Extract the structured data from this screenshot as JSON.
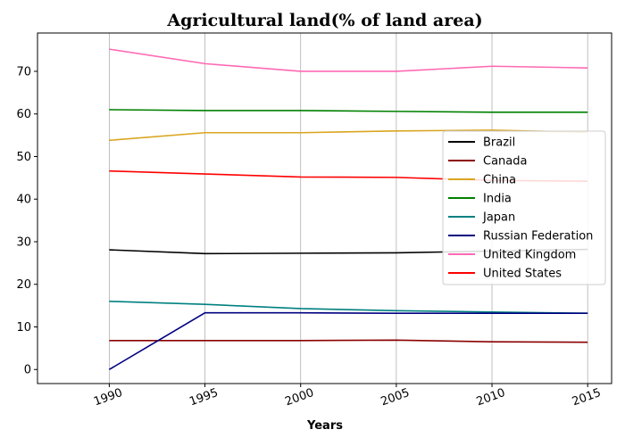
{
  "chart_data": {
    "type": "line",
    "title": "Agricultural land(% of land area)",
    "xlabel": "Years",
    "ylabel": "",
    "x": [
      1990,
      1995,
      2000,
      2005,
      2010,
      2015
    ],
    "x_tick_labels": [
      "1990",
      "1995",
      "2000",
      "2005",
      "2010",
      "2015"
    ],
    "y_ticks": [
      0,
      10,
      20,
      30,
      40,
      50,
      60,
      70
    ],
    "y_tick_labels": [
      "0",
      "10",
      "20",
      "30",
      "40",
      "50",
      "60",
      "70"
    ],
    "xlim": [
      1986.25,
      2016.25
    ],
    "ylim": [
      -3.3,
      79.0
    ],
    "grid": "vertical",
    "legend_position": "center-right",
    "series": [
      {
        "name": "Brazil",
        "color": "#000000",
        "values": [
          28.1,
          27.2,
          27.3,
          27.4,
          27.8,
          28.2
        ]
      },
      {
        "name": "Canada",
        "color": "#8b0000",
        "values": [
          6.8,
          6.8,
          6.8,
          6.9,
          6.5,
          6.4
        ]
      },
      {
        "name": "China",
        "color": "#daa520",
        "values": [
          53.8,
          55.6,
          55.6,
          56.0,
          56.2,
          55.7
        ]
      },
      {
        "name": "India",
        "color": "#008000",
        "values": [
          61.0,
          60.8,
          60.8,
          60.6,
          60.4,
          60.4
        ]
      },
      {
        "name": "Japan",
        "color": "#008080",
        "values": [
          16.0,
          15.3,
          14.3,
          13.8,
          13.5,
          13.2
        ]
      },
      {
        "name": "Russian Federation",
        "color": "#000080",
        "values": [
          0.0,
          13.3,
          13.3,
          13.2,
          13.2,
          13.2
        ]
      },
      {
        "name": "United Kingdom",
        "color": "#ff69b4",
        "values": [
          75.2,
          71.8,
          70.0,
          70.0,
          71.2,
          70.8
        ]
      },
      {
        "name": "United States",
        "color": "#ff0000",
        "values": [
          46.6,
          45.9,
          45.2,
          45.1,
          44.4,
          44.2
        ]
      }
    ]
  }
}
